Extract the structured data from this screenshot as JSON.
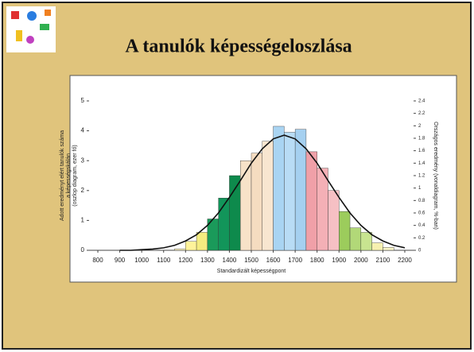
{
  "chart_data": {
    "type": "histogram",
    "title": "A tanulók képességeloszlása",
    "x_label": "Standardizált képességpont",
    "y_label": [
      "Adott eredményt elért tanulók száma",
      "a képességskálán",
      "(oszlop diagram, ezer fő)"
    ],
    "y2_label": "Országos eredmény (vonaldiagram, %-ban)",
    "bins": [
      1150,
      1200,
      1250,
      1300,
      1350,
      1400,
      1450,
      1500,
      1550,
      1600,
      1650,
      1700,
      1750,
      1800,
      1850,
      1900,
      1950,
      2000,
      2050,
      2100,
      2150
    ],
    "values": [
      0.05,
      0.3,
      0.6,
      1.05,
      1.75,
      2.5,
      3.0,
      3.25,
      3.65,
      4.15,
      3.95,
      4.05,
      3.3,
      2.75,
      2.0,
      1.3,
      0.75,
      0.6,
      0.25,
      0.1
    ],
    "colors": [
      "#fff7c0",
      "#fff39a",
      "#f4ec80",
      "#1a9a5a",
      "#12955a",
      "#0e8a4c",
      "#f7e2c8",
      "#f5dcc0",
      "#f8e6d0",
      "#a9d4f2",
      "#b8dcf5",
      "#a5d0f0",
      "#f0a0a8",
      "#f4b0b6",
      "#f6c0c4",
      "#9ccc5c",
      "#b2d878",
      "#c8e490",
      "#f6f0b0",
      "#f8f4c8"
    ],
    "series": [
      {
        "type": "line",
        "axis": "y2",
        "color": "#111",
        "x": [
          900,
          950,
          1000,
          1050,
          1100,
          1150,
          1200,
          1250,
          1300,
          1350,
          1400,
          1450,
          1500,
          1550,
          1600,
          1650,
          1700,
          1750,
          1800,
          1850,
          1900,
          1950,
          2000,
          2050,
          2100,
          2150,
          2200
        ],
        "values": [
          0.0,
          0.0,
          0.01,
          0.02,
          0.04,
          0.08,
          0.15,
          0.25,
          0.4,
          0.6,
          0.85,
          1.12,
          1.4,
          1.63,
          1.79,
          1.85,
          1.79,
          1.63,
          1.4,
          1.12,
          0.85,
          0.6,
          0.4,
          0.25,
          0.15,
          0.08,
          0.04
        ]
      }
    ],
    "xlim": [
      760,
      2240
    ],
    "xticks": [
      800,
      900,
      1000,
      1100,
      1200,
      1300,
      1400,
      1500,
      1600,
      1700,
      1800,
      1900,
      2000,
      2100,
      2200
    ],
    "ylim": [
      0,
      5
    ],
    "yticks": [
      0,
      1,
      2,
      3,
      4,
      5
    ],
    "y2lim": [
      0,
      2.4
    ],
    "y2ticks": [
      0,
      0.2,
      0.4,
      0.6,
      0.8,
      1,
      1.2,
      1.4,
      1.6,
      1.8,
      2,
      2.2,
      2.4
    ]
  }
}
